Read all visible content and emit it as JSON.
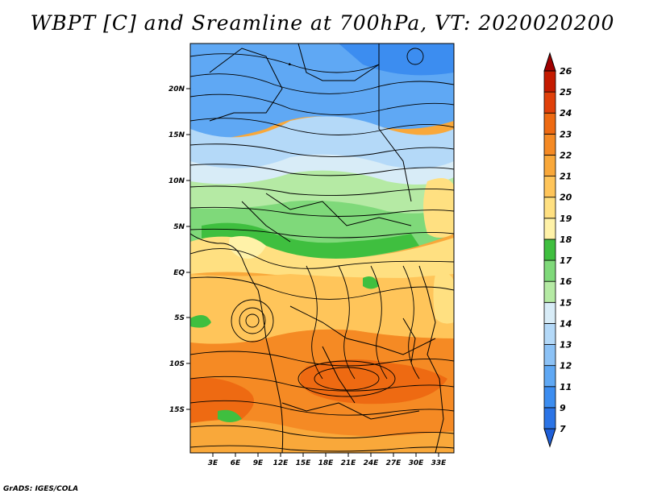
{
  "title": "WBPT [C] and Sreamline at 700hPa, VT: 2020020200",
  "credit": "GrADS: IGES/COLA",
  "map": {
    "lon_range": [
      0,
      35
    ],
    "lat_range": [
      -20,
      25
    ],
    "lon_ticks": [
      "3E",
      "6E",
      "9E",
      "12E",
      "15E",
      "18E",
      "21E",
      "24E",
      "27E",
      "30E",
      "33E"
    ],
    "lat_ticks": [
      "20N",
      "15N",
      "10N",
      "5N",
      "EQ",
      "5S",
      "10S",
      "15S"
    ]
  },
  "colorbar": {
    "levels": [
      "7",
      "9",
      "11",
      "12",
      "13",
      "14",
      "15",
      "16",
      "17",
      "18",
      "19",
      "20",
      "21",
      "22",
      "23",
      "24",
      "25",
      "26"
    ],
    "colors": [
      "#1e5fd8",
      "#2b74e6",
      "#3c8df0",
      "#5fa8f4",
      "#8cc2f6",
      "#b4d9f8",
      "#d8ecf7",
      "#b5eaa4",
      "#7fd97a",
      "#3fbf3f",
      "#fff2a8",
      "#ffe081",
      "#ffc55a",
      "#f9a83a",
      "#f58a24",
      "#ee6a12",
      "#e0400a",
      "#c41a00",
      "#a00000"
    ]
  }
}
